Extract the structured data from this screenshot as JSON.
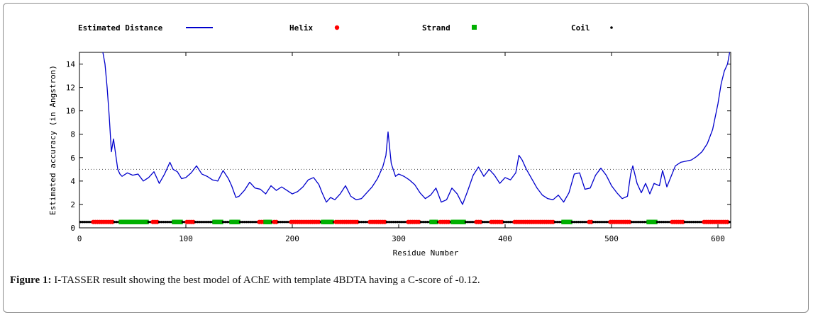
{
  "legend": {
    "distance_label": "Estimated Distance",
    "helix_label": "Helix",
    "strand_label": "Strand",
    "coil_label": "Coil"
  },
  "colors": {
    "line": "#0000cc",
    "helix": "#ff0000",
    "strand": "#00b000",
    "coil": "#000000",
    "threshold": "#555555"
  },
  "caption": {
    "label": "Figure 1:",
    "text": " I-TASSER result showing the best model of AChE with template 4BDTA having a C-score of -0.12."
  },
  "chart_data": {
    "type": "line",
    "title": "",
    "xlabel": "Residue Number",
    "ylabel": "Estimated accuracy (in Angstron)",
    "xlim": [
      0,
      612
    ],
    "ylim": [
      0,
      15
    ],
    "xticks": [
      0,
      100,
      200,
      300,
      400,
      500,
      600
    ],
    "yticks": [
      0,
      2,
      4,
      6,
      8,
      10,
      12,
      14
    ],
    "threshold": 5,
    "series": [
      {
        "name": "Estimated Distance",
        "x": [
          22,
          24,
          26,
          28,
          30,
          32,
          34,
          36,
          38,
          40,
          45,
          50,
          55,
          60,
          65,
          70,
          75,
          80,
          85,
          88,
          92,
          96,
          100,
          105,
          110,
          115,
          120,
          125,
          130,
          135,
          140,
          143,
          147,
          150,
          155,
          160,
          165,
          170,
          175,
          180,
          185,
          190,
          195,
          200,
          205,
          210,
          215,
          220,
          225,
          228,
          232,
          236,
          240,
          245,
          250,
          255,
          260,
          265,
          270,
          275,
          280,
          285,
          288,
          290,
          293,
          297,
          300,
          305,
          310,
          315,
          320,
          325,
          330,
          335,
          340,
          345,
          350,
          355,
          360,
          365,
          370,
          375,
          380,
          385,
          390,
          395,
          400,
          405,
          410,
          413,
          416,
          420,
          425,
          430,
          435,
          440,
          445,
          450,
          455,
          460,
          465,
          470,
          475,
          480,
          485,
          490,
          495,
          500,
          505,
          510,
          515,
          518,
          520,
          524,
          528,
          532,
          536,
          540,
          545,
          548,
          552,
          556,
          560,
          565,
          570,
          575,
          580,
          585,
          590,
          595,
          600,
          603,
          606,
          609,
          611
        ],
        "values": [
          15,
          14,
          12,
          9.5,
          6.5,
          7.6,
          6.3,
          5.0,
          4.6,
          4.4,
          4.7,
          4.5,
          4.6,
          4.0,
          4.3,
          4.8,
          3.8,
          4.6,
          5.6,
          5.0,
          4.8,
          4.2,
          4.3,
          4.7,
          5.3,
          4.6,
          4.4,
          4.1,
          4.0,
          4.9,
          4.2,
          3.6,
          2.6,
          2.7,
          3.2,
          3.9,
          3.4,
          3.3,
          2.9,
          3.6,
          3.2,
          3.5,
          3.2,
          2.9,
          3.1,
          3.5,
          4.1,
          4.3,
          3.7,
          3.0,
          2.2,
          2.6,
          2.4,
          2.9,
          3.6,
          2.7,
          2.4,
          2.5,
          3.0,
          3.5,
          4.2,
          5.2,
          6.2,
          8.2,
          5.5,
          4.4,
          4.6,
          4.4,
          4.1,
          3.7,
          3.0,
          2.5,
          2.8,
          3.4,
          2.2,
          2.4,
          3.4,
          2.9,
          2.0,
          3.2,
          4.5,
          5.2,
          4.4,
          5.0,
          4.5,
          3.8,
          4.3,
          4.1,
          4.7,
          6.2,
          5.8,
          5.0,
          4.2,
          3.4,
          2.8,
          2.5,
          2.4,
          2.8,
          2.2,
          3.0,
          4.6,
          4.7,
          3.3,
          3.4,
          4.5,
          5.1,
          4.5,
          3.6,
          3.0,
          2.5,
          2.7,
          4.6,
          5.3,
          3.8,
          3.0,
          3.8,
          2.9,
          3.8,
          3.6,
          4.9,
          3.5,
          4.4,
          5.3,
          5.6,
          5.7,
          5.8,
          6.1,
          6.5,
          7.2,
          8.4,
          10.6,
          12.3,
          13.4,
          14.0,
          15.0
        ]
      }
    ],
    "secondary_structure": {
      "helix_ranges": [
        [
          12,
          31
        ],
        [
          68,
          73
        ],
        [
          100,
          107
        ],
        [
          168,
          173
        ],
        [
          182,
          185
        ],
        [
          198,
          226
        ],
        [
          240,
          262
        ],
        [
          272,
          288
        ],
        [
          308,
          320
        ],
        [
          338,
          347
        ],
        [
          372,
          378
        ],
        [
          386,
          397
        ],
        [
          408,
          446
        ],
        [
          478,
          482
        ],
        [
          498,
          518
        ],
        [
          556,
          568
        ],
        [
          586,
          610
        ]
      ],
      "strand_ranges": [
        [
          38,
          64
        ],
        [
          88,
          95
        ],
        [
          126,
          133
        ],
        [
          142,
          150
        ],
        [
          174,
          180
        ],
        [
          228,
          238
        ],
        [
          330,
          336
        ],
        [
          351,
          362
        ],
        [
          455,
          461
        ],
        [
          534,
          542
        ]
      ]
    }
  }
}
